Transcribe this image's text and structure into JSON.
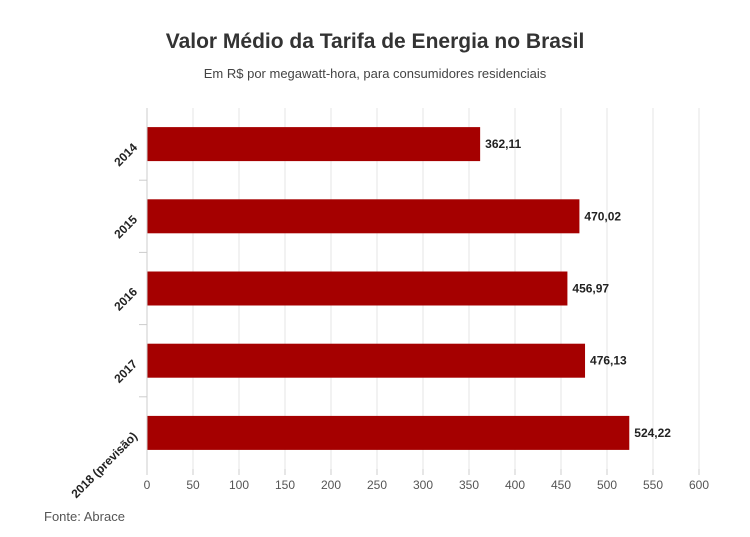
{
  "chart_data": {
    "type": "bar",
    "orientation": "horizontal",
    "title": "Valor Médio da Tarifa de Energia no Brasil",
    "subtitle": "Em R$ por megawatt-hora, para consumidores residenciais",
    "categories": [
      "2014",
      "2015",
      "2016",
      "2017",
      "2018 (previsão)"
    ],
    "values": [
      362.11,
      470.02,
      456.97,
      476.13,
      524.22
    ],
    "value_labels": [
      "362,11",
      "470,02",
      "456,97",
      "476,13",
      "524,22"
    ],
    "x_ticks": [
      0,
      50,
      100,
      150,
      200,
      250,
      300,
      350,
      400,
      450,
      500,
      550,
      600
    ],
    "xlim": [
      0,
      600
    ],
    "grid": true,
    "bar_color": "#a50000",
    "source": "Fonte: Abrace"
  }
}
